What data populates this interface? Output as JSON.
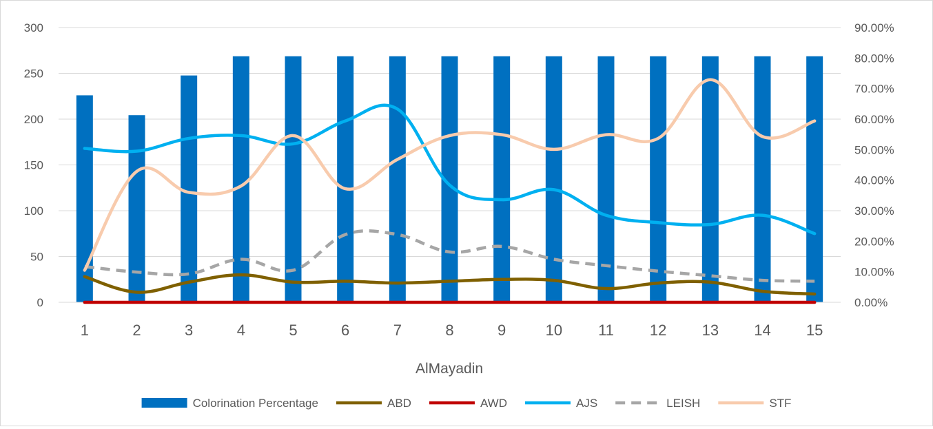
{
  "chart_data": {
    "type": "bar",
    "title": "",
    "xlabel": "AlMayadin",
    "ylabel": "",
    "y2label": "",
    "categories": [
      "1",
      "2",
      "3",
      "4",
      "5",
      "6",
      "7",
      "8",
      "9",
      "10",
      "11",
      "12",
      "13",
      "14",
      "15"
    ],
    "ylim": [
      0,
      300
    ],
    "yticks": [
      "0",
      "50",
      "100",
      "150",
      "200",
      "250",
      "300"
    ],
    "y2lim": [
      0,
      0.9
    ],
    "y2ticks": [
      "0.00%",
      "10.00%",
      "20.00%",
      "30.00%",
      "40.00%",
      "50.00%",
      "60.00%",
      "70.00%",
      "80.00%",
      "90.00%"
    ],
    "grid": true,
    "legend_position": "bottom",
    "series": [
      {
        "name": "Colorination Percentage",
        "kind": "bar",
        "axis": "right",
        "color": "#0070c0",
        "values": [
          0.678,
          0.613,
          0.743,
          0.806,
          0.806,
          0.806,
          0.806,
          0.806,
          0.806,
          0.806,
          0.806,
          0.806,
          0.806,
          0.806,
          0.806
        ]
      },
      {
        "name": "ABD",
        "kind": "line",
        "axis": "left",
        "color": "#7f6000",
        "dash": "solid",
        "values": [
          28,
          11,
          22,
          30,
          22,
          23,
          21,
          23,
          25,
          24,
          15,
          21,
          22,
          12,
          9
        ]
      },
      {
        "name": "AWD",
        "kind": "line",
        "axis": "left",
        "color": "#c00000",
        "dash": "solid",
        "values": [
          0,
          0,
          0,
          0,
          0,
          0,
          0,
          0,
          0,
          0,
          0,
          0,
          0,
          0,
          0
        ]
      },
      {
        "name": "AJS",
        "kind": "line",
        "axis": "left",
        "color": "#00b0f0",
        "dash": "solid",
        "values": [
          168,
          165,
          179,
          182,
          173,
          198,
          211,
          128,
          112,
          123,
          95,
          87,
          85,
          95,
          75
        ]
      },
      {
        "name": "LEISH",
        "kind": "line",
        "axis": "left",
        "color": "#a6a6a6",
        "dash": "dashed",
        "values": [
          39,
          33,
          31,
          47,
          35,
          74,
          74,
          55,
          61,
          47,
          40,
          34,
          29,
          24,
          23
        ]
      },
      {
        "name": "STF",
        "kind": "line",
        "axis": "left",
        "color": "#f8cbad",
        "dash": "solid",
        "values": [
          35,
          143,
          120,
          127,
          182,
          124,
          156,
          182,
          183,
          167,
          183,
          179,
          243,
          181,
          198
        ]
      }
    ]
  }
}
